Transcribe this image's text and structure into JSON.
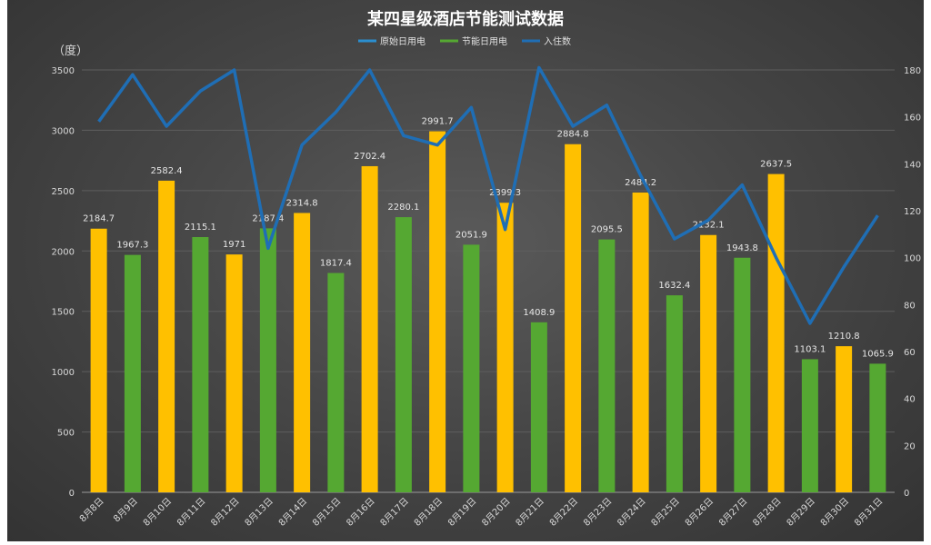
{
  "chart_data": {
    "type": "bar",
    "title": "某四星级酒店节能测试数据",
    "ylabel": "（度）",
    "y2label": "",
    "ylim": [
      0,
      3500
    ],
    "y2lim": [
      0,
      180
    ],
    "yticks": [
      0,
      500,
      1000,
      1500,
      2000,
      2500,
      3000,
      3500
    ],
    "y2ticks": [
      0,
      20,
      40,
      60,
      80,
      100,
      120,
      140,
      160,
      180
    ],
    "grid": true,
    "legend_position": "top",
    "categories": [
      "8月8日",
      "8月9日",
      "8月10日",
      "8月11日",
      "8月12日",
      "8月13日",
      "8月14日",
      "8月15日",
      "8月16日",
      "8月17日",
      "8月18日",
      "8月19日",
      "8月20日",
      "8月21日",
      "8月22日",
      "8月23日",
      "8月24日",
      "8月25日",
      "8月26日",
      "8月27日",
      "8月28日",
      "8月29日",
      "8月30日",
      "8月31日"
    ],
    "values": [
      2184.7,
      1967.3,
      2582.4,
      2115.1,
      1971,
      2187.4,
      2314.8,
      1817.4,
      2702.4,
      2280.1,
      2991.7,
      2051.9,
      2399.3,
      1408.9,
      2884.8,
      2095.5,
      2484.2,
      1632.4,
      2132.1,
      1943.8,
      2637.5,
      1103.1,
      1210.8,
      1065.9
    ],
    "value_labels": [
      "2184.7",
      "1967.3",
      "2582.4",
      "2115.1",
      "1971",
      "2187.4",
      "2314.8",
      "1817.4",
      "2702.4",
      "2280.1",
      "2991.7",
      "2051.9",
      "2399.3",
      "1408.9",
      "2884.8",
      "2095.5",
      "2484.2",
      "1632.4",
      "2132.1",
      "1943.8",
      "2637.5",
      "1103.1",
      "1210.8",
      "1065.9"
    ],
    "bar_types": [
      "original",
      "saving",
      "original",
      "saving",
      "original",
      "saving",
      "original",
      "saving",
      "original",
      "saving",
      "original",
      "saving",
      "original",
      "saving",
      "original",
      "saving",
      "original",
      "saving",
      "original",
      "saving",
      "original",
      "saving",
      "original",
      "saving"
    ],
    "series": [
      {
        "name": "原始日用电",
        "kind": "bar",
        "color": "#FFC000"
      },
      {
        "name": "节能日用电",
        "kind": "bar",
        "color": "#55A832"
      },
      {
        "name": "入住数",
        "kind": "line",
        "axis": "right",
        "color": "#1F6EB5",
        "values": [
          158,
          178,
          156,
          171,
          180,
          104,
          148,
          162,
          180,
          152,
          148,
          164,
          112,
          181,
          156,
          165,
          135,
          108,
          116,
          131,
          100,
          72,
          96,
          118
        ]
      }
    ]
  }
}
